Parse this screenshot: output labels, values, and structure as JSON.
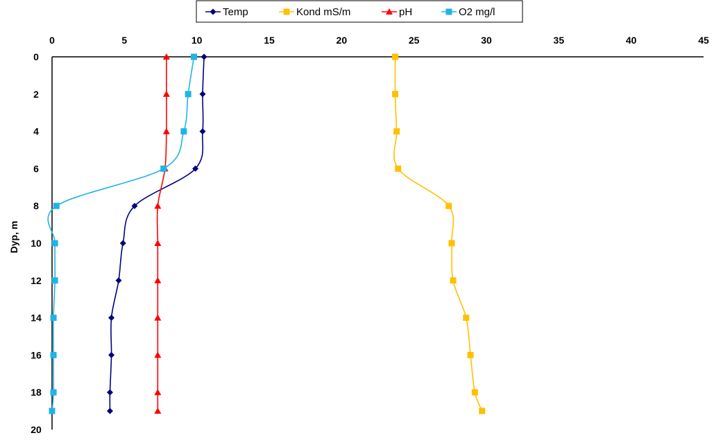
{
  "chart_data": {
    "type": "line",
    "orientation": "depth-profile",
    "ylabel": "Dyp, m",
    "xlabel": "",
    "xlim": [
      0,
      45
    ],
    "ylim": [
      0,
      20
    ],
    "y_inverted": true,
    "x_ticks": [
      0,
      5,
      10,
      15,
      20,
      25,
      30,
      35,
      40,
      45
    ],
    "y_ticks": [
      0,
      2,
      4,
      6,
      8,
      10,
      12,
      14,
      16,
      18,
      20
    ],
    "x_axis_position": "top",
    "grid": false,
    "legend_position": "top",
    "depth": [
      0,
      2,
      4,
      6,
      8,
      10,
      12,
      14,
      16,
      18,
      19
    ],
    "series": [
      {
        "name": "Temp",
        "color": "#000080",
        "marker": "diamond",
        "values": [
          10.5,
          10.4,
          10.4,
          9.9,
          5.7,
          4.9,
          4.6,
          4.1,
          4.1,
          4.0,
          4.0
        ]
      },
      {
        "name": "Kond mS/m",
        "color": "#FFC000",
        "marker": "square",
        "values": [
          23.7,
          23.7,
          23.8,
          23.9,
          27.4,
          27.6,
          27.7,
          28.6,
          28.9,
          29.2,
          29.7
        ]
      },
      {
        "name": "pH",
        "color": "#FF0000",
        "marker": "triangle",
        "values": [
          7.9,
          7.9,
          7.9,
          7.8,
          7.3,
          7.3,
          7.3,
          7.3,
          7.3,
          7.3,
          7.3
        ]
      },
      {
        "name": "O2 mg/l",
        "color": "#1EB4E6",
        "marker": "square",
        "values": [
          9.8,
          9.4,
          9.1,
          7.7,
          0.3,
          0.2,
          0.2,
          0.1,
          0.1,
          0.1,
          0.0
        ]
      }
    ]
  }
}
